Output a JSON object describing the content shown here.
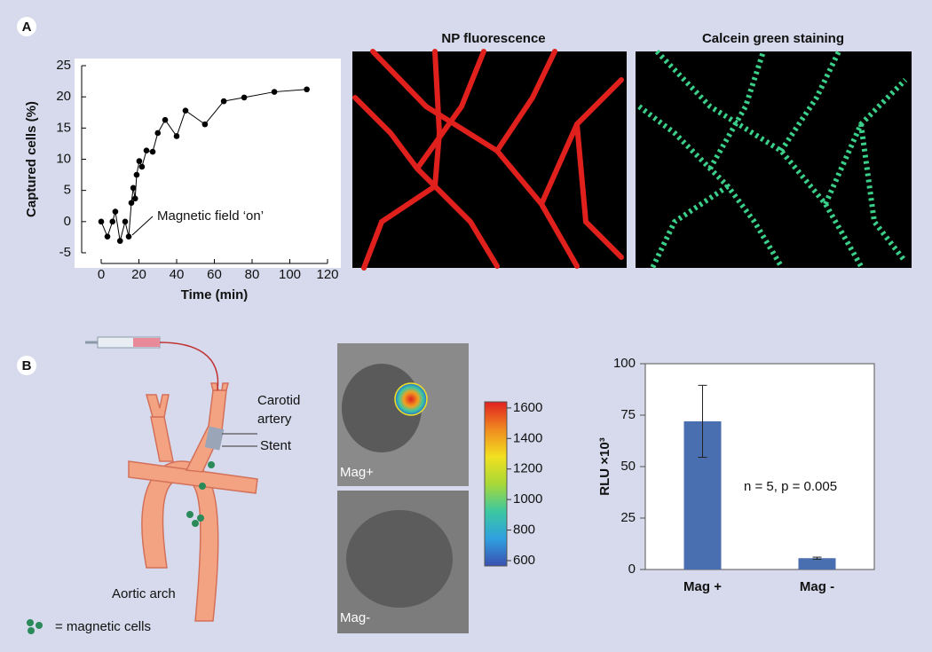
{
  "panels": [
    "A",
    "B"
  ],
  "images": {
    "np_title": "NP fluorescence",
    "calcein_title": "Calcein green staining",
    "mag_plus": "Mag+",
    "mag_minus": "Mag-"
  },
  "diagram": {
    "carotid": [
      "Carotid",
      "artery"
    ],
    "stent": "Stent",
    "aortic": "Aortic arch",
    "legend": "= magnetic cells"
  },
  "chart_data": [
    {
      "type": "line",
      "xlabel": "Time (min)",
      "ylabel": "Captured cells (%)",
      "annotation": "Magnetic field ‘on’",
      "color": "#000000",
      "x": [
        0,
        3.3,
        6,
        7.5,
        10,
        12.7,
        14.6,
        16,
        17,
        18,
        18.8,
        20.2,
        21.6,
        24,
        27.3,
        30,
        33.9,
        40,
        44.7,
        55,
        65,
        75.8,
        91.8,
        109
      ],
      "values": [
        0,
        -2.4,
        0,
        1.6,
        -3.1,
        0,
        -2.4,
        3,
        5.4,
        3.7,
        7.5,
        9.7,
        8.8,
        11.4,
        11.2,
        14.2,
        16.3,
        13.7,
        17.8,
        15.6,
        19.3,
        19.9,
        20.8,
        21.2
      ],
      "xlim": [
        -8,
        124
      ],
      "xticks": [
        0,
        20,
        40,
        60,
        80,
        100,
        120
      ],
      "ylim": [
        -6,
        26
      ],
      "yticks": [
        -5,
        0,
        5,
        10,
        15,
        20,
        25
      ]
    },
    {
      "type": "bar",
      "ylabel": "RLU ×10³",
      "annotation": "n = 5, p = 0.005",
      "color": "#4a6fb0",
      "categories": [
        "Mag +",
        "Mag -"
      ],
      "values": [
        72,
        5.5
      ],
      "errors": [
        17.5,
        0.5
      ],
      "ylim": [
        0,
        100
      ],
      "yticks": [
        0,
        25,
        50,
        75,
        100
      ]
    },
    {
      "type": "colorbar",
      "colors": [
        "#3a4fb0",
        "#2fa0e0",
        "#3cc8a0",
        "#a8d838",
        "#f2e020",
        "#f08a20",
        "#e02020"
      ],
      "ylim": [
        565,
        1640
      ],
      "yticks": [
        600,
        800,
        1000,
        1200,
        1400,
        1600
      ]
    }
  ]
}
